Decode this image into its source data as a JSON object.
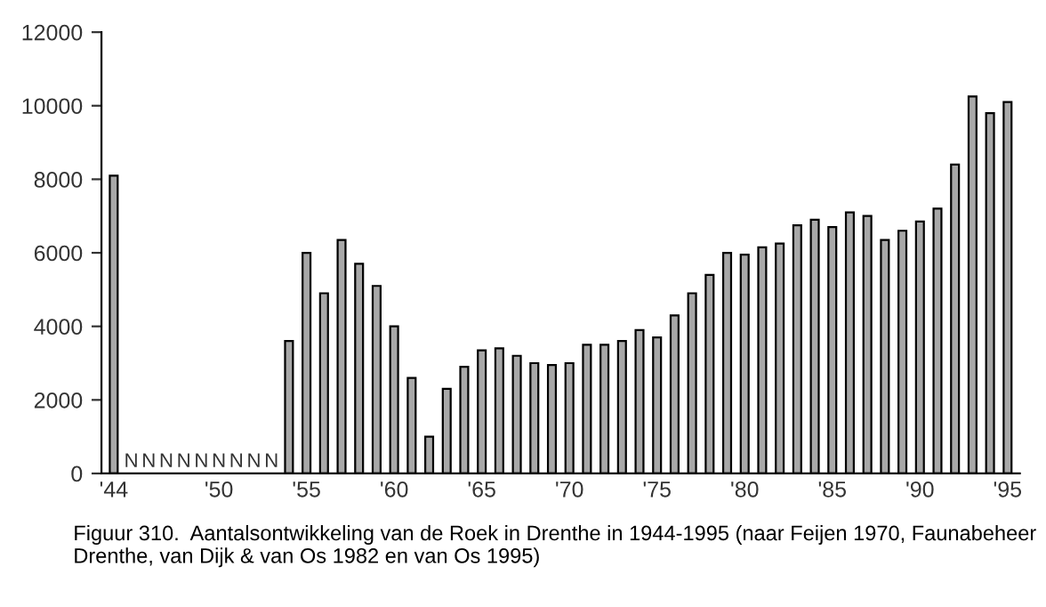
{
  "chart_data": {
    "type": "bar",
    "categories": [
      "'44",
      null,
      null,
      null,
      null,
      null,
      "'50",
      null,
      null,
      null,
      null,
      "'55",
      null,
      null,
      null,
      null,
      "'60",
      null,
      null,
      null,
      null,
      "'65",
      null,
      null,
      null,
      null,
      "'70",
      null,
      null,
      null,
      null,
      "'75",
      null,
      null,
      null,
      null,
      "'80",
      null,
      null,
      null,
      null,
      "'85",
      null,
      null,
      null,
      null,
      "'90",
      null,
      null,
      null,
      null,
      "'95"
    ],
    "values": [
      8100,
      null,
      null,
      null,
      null,
      null,
      null,
      null,
      null,
      null,
      3600,
      6000,
      4900,
      6350,
      5700,
      5100,
      4000,
      2600,
      1000,
      2300,
      2900,
      3350,
      3400,
      3200,
      3000,
      2950,
      3000,
      3500,
      3500,
      3600,
      3900,
      3700,
      4300,
      4900,
      5400,
      6000,
      5950,
      6150,
      6250,
      6750,
      6900,
      6700,
      7100,
      7000,
      6350,
      6600,
      6850,
      7200,
      8400,
      10250,
      9800,
      10100
    ],
    "value_labels": [
      null,
      "N",
      "N",
      "N",
      "N",
      "N",
      "N",
      "N",
      "N",
      "N",
      null,
      null,
      null,
      null,
      null,
      null,
      null,
      null,
      null,
      null,
      null,
      null,
      null,
      null,
      null,
      null,
      null,
      null,
      null,
      null,
      null,
      null,
      null,
      null,
      null,
      null,
      null,
      null,
      null,
      null,
      null,
      null,
      null,
      null,
      null,
      null,
      null,
      null,
      null,
      null,
      null,
      null
    ],
    "color": "#a8a8a8",
    "ylim": [
      0,
      12000
    ],
    "yticks": [
      0,
      2000,
      4000,
      6000,
      8000,
      10000,
      12000
    ],
    "grid": false,
    "annotations": [
      "Figuur 310.  Aantalsontwikkeling van de Roek in Drenthe in 1944-1995 (naar Feijen 1970, Faunabeheer Drenthe, van Dijk & van Os 1982 en van Os 1995)"
    ]
  }
}
